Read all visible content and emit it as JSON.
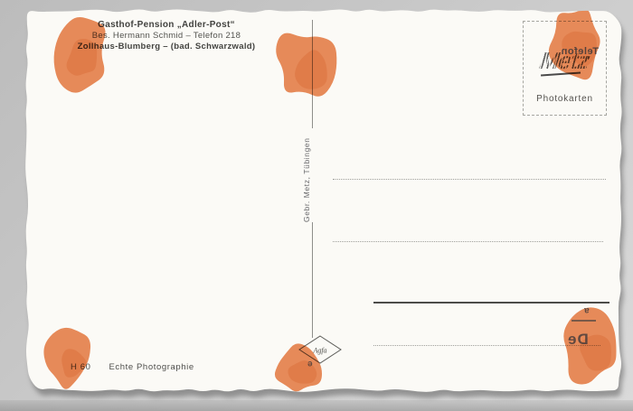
{
  "card": {
    "header": {
      "line1": "Gasthof-Pension „Adler-Post“",
      "line2": "Bes. Hermann Schmid – Telefon 218",
      "line3": "Zollhaus-Blumberg – (bad. Schwarzwald)"
    },
    "publisher_vertical": "Gebr. Metz, Tübingen",
    "stamp_box": {
      "label": "Photokarten",
      "logo_text": "Metz"
    },
    "film_logo": "Agfa",
    "footer": {
      "code": "H 60",
      "label": "Echte Photographie"
    },
    "ghost_marks": {
      "stamp_ghost": "Telefon",
      "corner_small": "a",
      "corner_large": "De",
      "center_small": "e"
    },
    "colors": {
      "ink_orange": "#e8834e",
      "ink_orange_dark": "#dd6f3a",
      "card": "#fbfaf6",
      "shadow": "#5f5f5f",
      "text": "#434340",
      "line": "#8e8e8b"
    }
  }
}
